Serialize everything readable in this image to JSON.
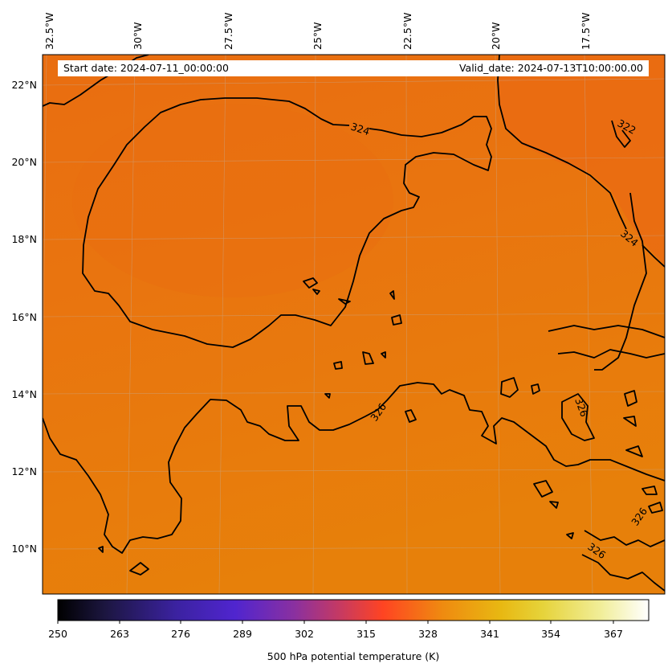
{
  "header": {
    "start_date": "Start date: 2024-07-11_00:00:00",
    "valid_date": "Valid_date: 2024-07-13T10:00:00.00"
  },
  "map": {
    "lon_labels": [
      "32.5°W",
      "30°W",
      "27.5°W",
      "25°W",
      "22.5°W",
      "20°W",
      "17.5°W"
    ],
    "lat_labels": [
      "22°N",
      "20°N",
      "18°N",
      "16°N",
      "14°N",
      "12°N",
      "10°N"
    ],
    "contour_labels": [
      "324",
      "322",
      "324",
      "326",
      "326",
      "326",
      "326"
    ],
    "fill_colors": {
      "base": "#e9750f",
      "warm": "#e77f0a",
      "cool": "#e96a12"
    },
    "contour_color": "#000000"
  },
  "colorbar": {
    "ticks": [
      "250",
      "263",
      "276",
      "289",
      "302",
      "315",
      "328",
      "341",
      "354",
      "367"
    ],
    "label": "500 hPa potential temperature (K)",
    "colormap_stops": [
      "#000000",
      "#1c1640",
      "#3b22a0",
      "#5025cf",
      "#8a30a0",
      "#c83a60",
      "#ff4422",
      "#ef8a10",
      "#e8b812",
      "#e6d33a",
      "#f1ee9a",
      "#ffffff"
    ]
  }
}
